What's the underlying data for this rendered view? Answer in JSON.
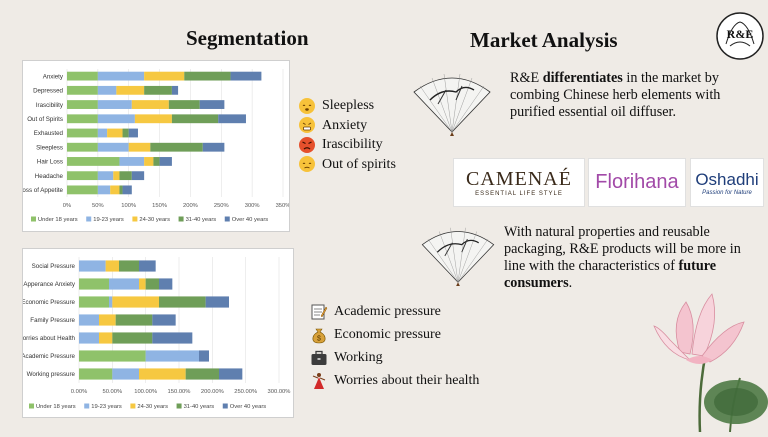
{
  "headings": {
    "segmentation": "Segmentation",
    "market_analysis": "Market Analysis"
  },
  "brand_logo": {
    "text": "R&E"
  },
  "colors": {
    "under18": "#8fc26a",
    "y19_23": "#8fb4e3",
    "y24_30": "#f6c841",
    "y31_40": "#6f9e58",
    "over40": "#5f7faf"
  },
  "chart_data": [
    {
      "type": "bar",
      "orientation": "horizontal-stacked",
      "categories": [
        "Anxiety",
        "Depressed",
        "Irascibility",
        "Out of Spirits",
        "Exhausted",
        "Sleepless",
        "Hair Loss",
        "Headache",
        "Loss of Appetite"
      ],
      "series": [
        {
          "name": "Under 18 years",
          "values": [
            50,
            50,
            50,
            50,
            50,
            50,
            85,
            50,
            50
          ]
        },
        {
          "name": "19-23 years",
          "values": [
            75,
            30,
            55,
            60,
            15,
            50,
            40,
            25,
            20
          ]
        },
        {
          "name": "24-30 years",
          "values": [
            65,
            45,
            60,
            60,
            25,
            35,
            15,
            10,
            15
          ]
        },
        {
          "name": "31-40 years",
          "values": [
            75,
            45,
            50,
            75,
            10,
            85,
            10,
            20,
            5
          ]
        },
        {
          "name": "Over 40 years",
          "values": [
            50,
            10,
            40,
            45,
            15,
            35,
            20,
            20,
            15
          ]
        }
      ],
      "xticks": [
        "0%",
        "50%",
        "100%",
        "150%",
        "200%",
        "250%",
        "300%",
        "350%"
      ],
      "xlim": [
        0,
        350
      ]
    },
    {
      "type": "bar",
      "orientation": "horizontal-stacked",
      "categories": [
        "Social Pressure",
        "Apperance Anxiety",
        "Economic Pressure",
        "Family Pressure",
        "Worries about Health",
        "Academic Pressure",
        "Working pressure"
      ],
      "series": [
        {
          "name": "Under 18 years",
          "values": [
            0,
            45,
            45,
            0,
            0,
            100,
            50
          ]
        },
        {
          "name": "19-23 years",
          "values": [
            40,
            45,
            5,
            30,
            30,
            80,
            40
          ]
        },
        {
          "name": "24-30 years",
          "values": [
            20,
            10,
            70,
            25,
            20,
            0,
            70
          ]
        },
        {
          "name": "31-40 years",
          "values": [
            30,
            20,
            70,
            55,
            60,
            0,
            50
          ]
        },
        {
          "name": "Over 40 years",
          "values": [
            25,
            20,
            35,
            35,
            60,
            15,
            35
          ]
        }
      ],
      "xticks": [
        "0.00%",
        "50.00%",
        "100.00%",
        "150.00%",
        "200.00%",
        "250.00%",
        "300.00%"
      ],
      "xlim": [
        0,
        300
      ]
    }
  ],
  "legend1": {
    "items": [
      {
        "label": "Sleepless",
        "icon": "sleepy-face-icon"
      },
      {
        "label": "Anxiety",
        "icon": "anxious-face-icon"
      },
      {
        "label": "Irascibility",
        "icon": "angry-face-icon"
      },
      {
        "label": "Out of spirits",
        "icon": "sad-face-icon"
      }
    ]
  },
  "legend2": {
    "items": [
      {
        "label": "Academic pressure",
        "icon": "memo-icon"
      },
      {
        "label": "Economic pressure",
        "icon": "money-bag-icon"
      },
      {
        "label": "Working",
        "icon": "briefcase-icon"
      },
      {
        "label": "Worries about their health",
        "icon": "dancer-icon"
      }
    ]
  },
  "market": {
    "p1_pre": "R&E ",
    "p1_bold": "differentiates",
    "p1_post": " in the market by combing Chinese herb elements with purified essential oil diffuser.",
    "p2_pre": "With natural properties and reusable packaging, R&E products will be more in line with the characteristics of ",
    "p2_bold": "future consumers",
    "p2_post": "."
  },
  "logos": {
    "camenae": {
      "name": "CAMENAÉ",
      "tagline": "ESSENTIAL LIFE STYLE"
    },
    "florihana": {
      "name": "Florihana"
    },
    "oshadhi": {
      "name": "Oshadhi",
      "tagline": "Passion for Nature"
    }
  }
}
